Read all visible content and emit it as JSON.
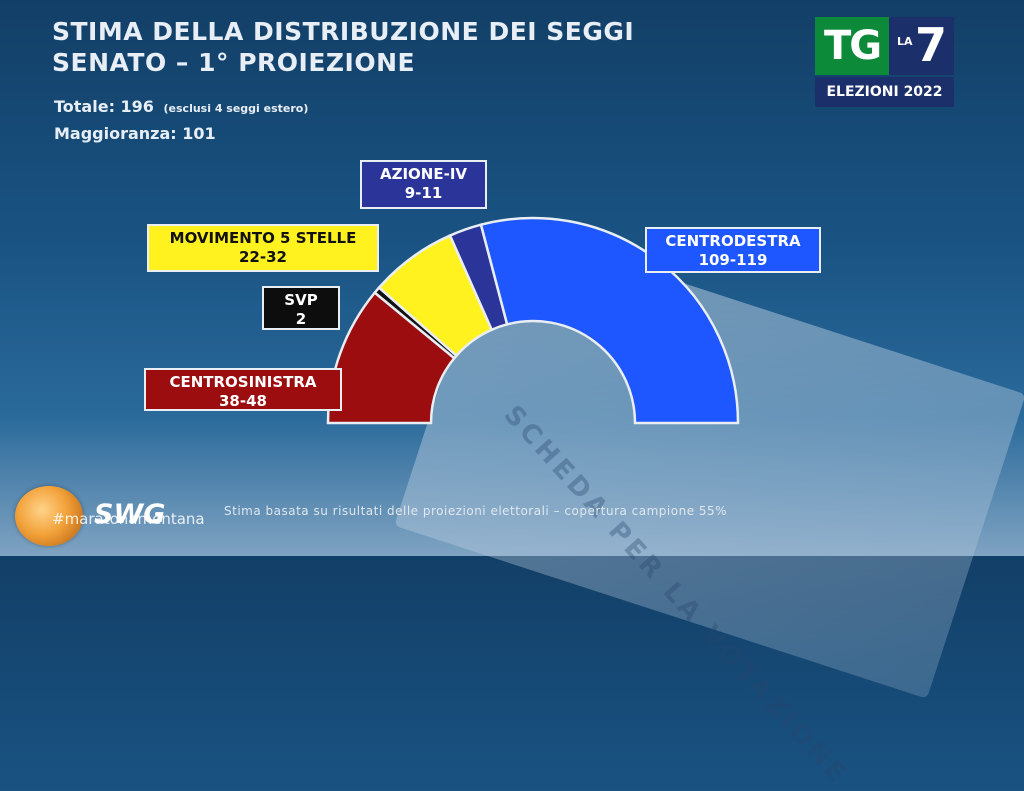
{
  "header": {
    "title_line1": "STIMA DELLA DISTRIBUZIONE DEI SEGGI",
    "title_line2": "SENATO – 1° PROIEZIONE",
    "totale_label": "Totale: 196",
    "totale_note": "(esclusi 4 seggi estero)",
    "maggioranza_label": "Maggioranza: 101"
  },
  "logo": {
    "tg": "TG",
    "la": "LA",
    "seven": "7",
    "elezioni": "ELEZIONI 2022"
  },
  "labels": {
    "centrosinistra": {
      "name": "CENTROSINISTRA",
      "range": "38-48"
    },
    "svp": {
      "name": "SVP",
      "range": "2"
    },
    "m5s": {
      "name": "MOVIMENTO 5 STELLE",
      "range": "22-32"
    },
    "azione": {
      "name": "AZIONE-IV",
      "range": "9-11"
    },
    "centrodestra": {
      "name": "CENTRODESTRA",
      "range": "109-119"
    }
  },
  "footer": {
    "swg": "SWG",
    "hashtag": "#maratonamentana",
    "note": "Stima basata su risultati delle proiezioni elettorali – copertura campione 55%"
  },
  "chart_data": {
    "type": "pie",
    "subtype": "half-donut parliament",
    "total": 196,
    "majority": 101,
    "series": [
      {
        "name": "CENTROSINISTRA",
        "range": [
          38,
          48
        ],
        "value": 43,
        "color": "#9c0d10"
      },
      {
        "name": "SVP",
        "range": [
          2,
          2
        ],
        "value": 2,
        "color": "#111111"
      },
      {
        "name": "MOVIMENTO 5 STELLE",
        "range": [
          22,
          32
        ],
        "value": 27,
        "color": "#fff21f"
      },
      {
        "name": "AZIONE-IV",
        "range": [
          9,
          11
        ],
        "value": 10,
        "color": "#2b3499"
      },
      {
        "name": "CENTRODESTRA",
        "range": [
          109,
          119
        ],
        "value": 114,
        "color": "#1e56ff"
      }
    ]
  }
}
